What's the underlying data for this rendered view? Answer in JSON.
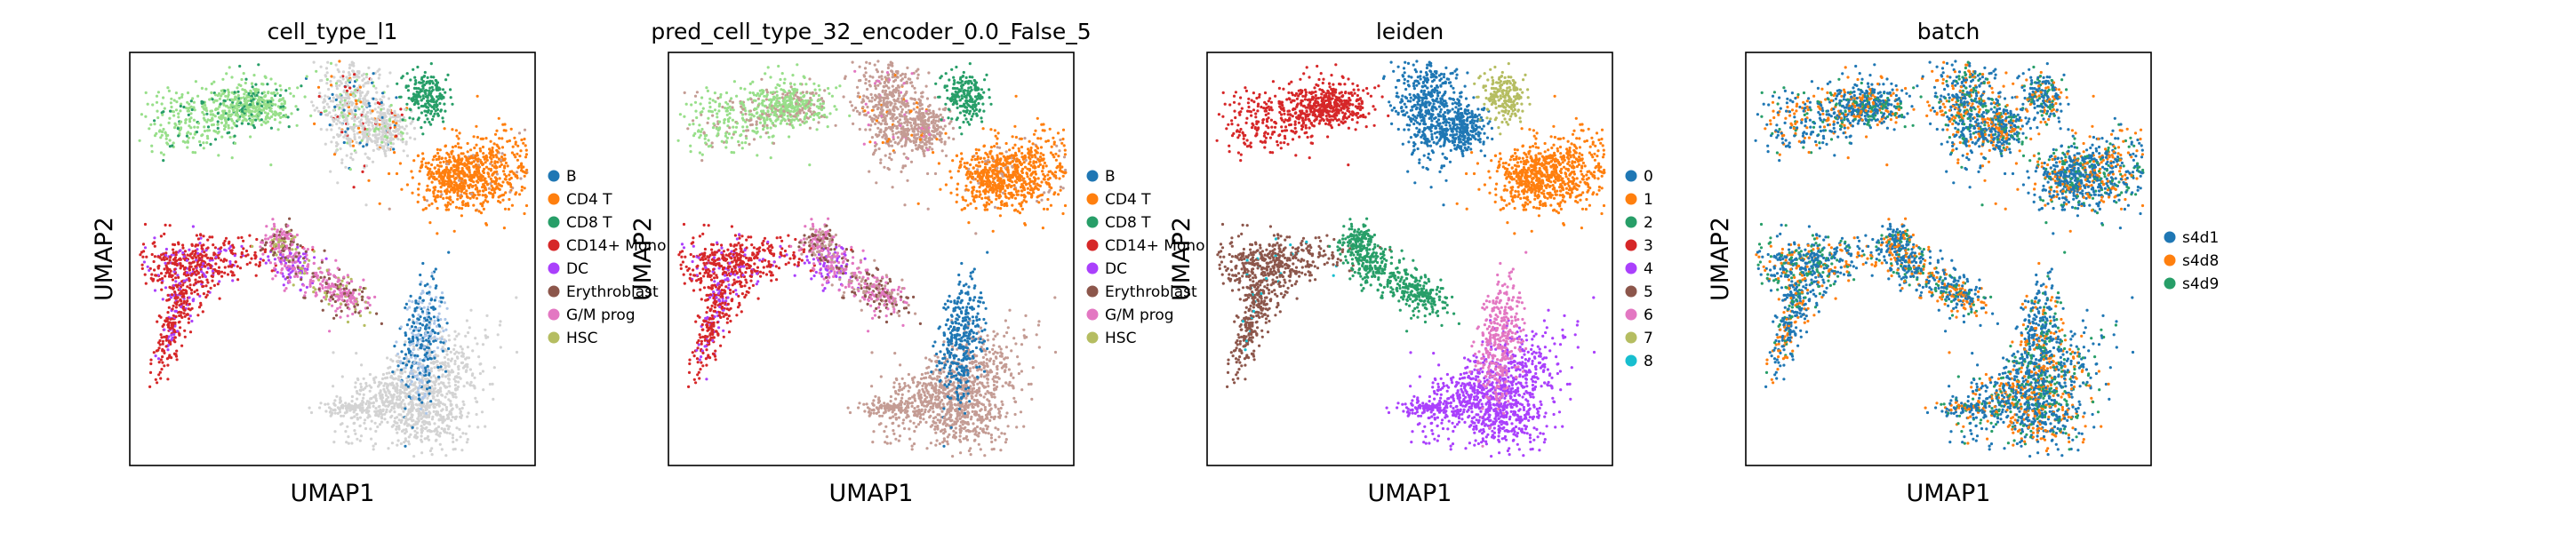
{
  "chart_data": [
    {
      "type": "scatter",
      "title": "cell_type_l1",
      "xlabel": "UMAP1",
      "ylabel": "UMAP2",
      "grid": false,
      "legend_position": "right",
      "legend": [
        {
          "label": "B",
          "color": "#1f77b4"
        },
        {
          "label": "CD4 T",
          "color": "#ff7f0e"
        },
        {
          "label": "CD8 T",
          "color": "#279e68"
        },
        {
          "label": "CD14+ Mono",
          "color": "#d62728"
        },
        {
          "label": "DC",
          "color": "#aa40fc"
        },
        {
          "label": "Erythroblast",
          "color": "#8c564b"
        },
        {
          "label": "G/M prog",
          "color": "#e377c2"
        },
        {
          "label": "HSC",
          "color": "#b5bd61"
        }
      ]
    },
    {
      "type": "scatter",
      "title": "pred_cell_type_32_encoder_0.0_False_5",
      "xlabel": "UMAP1",
      "ylabel": "UMAP2",
      "grid": false,
      "legend_position": "right",
      "legend": [
        {
          "label": "B",
          "color": "#1f77b4"
        },
        {
          "label": "CD4 T",
          "color": "#ff7f0e"
        },
        {
          "label": "CD8 T",
          "color": "#279e68"
        },
        {
          "label": "CD14+ Mono",
          "color": "#d62728"
        },
        {
          "label": "DC",
          "color": "#aa40fc"
        },
        {
          "label": "Erythroblast",
          "color": "#8c564b"
        },
        {
          "label": "G/M prog",
          "color": "#e377c2"
        },
        {
          "label": "HSC",
          "color": "#b5bd61"
        }
      ]
    },
    {
      "type": "scatter",
      "title": "leiden",
      "xlabel": "UMAP1",
      "ylabel": "UMAP2",
      "grid": false,
      "legend_position": "right",
      "legend": [
        {
          "label": "0",
          "color": "#1f77b4"
        },
        {
          "label": "1",
          "color": "#ff7f0e"
        },
        {
          "label": "2",
          "color": "#279e68"
        },
        {
          "label": "3",
          "color": "#d62728"
        },
        {
          "label": "4",
          "color": "#aa40fc"
        },
        {
          "label": "5",
          "color": "#8c564b"
        },
        {
          "label": "6",
          "color": "#e377c2"
        },
        {
          "label": "7",
          "color": "#b5bd61"
        },
        {
          "label": "8",
          "color": "#17becf"
        }
      ]
    },
    {
      "type": "scatter",
      "title": "batch",
      "xlabel": "UMAP1",
      "ylabel": "UMAP2",
      "grid": false,
      "legend_position": "right",
      "legend": [
        {
          "label": "s4d1",
          "color": "#1f77b4"
        },
        {
          "label": "s4d8",
          "color": "#ff7f0e"
        },
        {
          "label": "s4d9",
          "color": "#279e68"
        }
      ]
    }
  ]
}
